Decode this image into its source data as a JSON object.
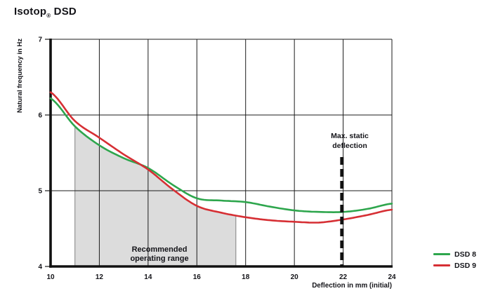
{
  "title": {
    "name": "Isotop",
    "reg": "®",
    "suffix": " DSD"
  },
  "colors": {
    "dsd8_green": "#2ea64d",
    "dsd9_red": "#d62f34",
    "region_fill": "#dcdcdc",
    "region_edge": "#808080",
    "grid": "#1b1b1b",
    "axis": "#111111",
    "text": "#141419"
  },
  "chart_data": {
    "type": "line",
    "title": "Isotop® DSD",
    "xlabel": "Deflection in mm (initial)",
    "ylabel": "Natural frequency in Hz",
    "xlim": [
      10,
      24
    ],
    "ylim": [
      4,
      7
    ],
    "x_ticks": [
      10,
      12,
      14,
      16,
      18,
      20,
      22,
      24
    ],
    "y_ticks": [
      4,
      5,
      6,
      7
    ],
    "grid": true,
    "legend_position": "bottom-right",
    "x": [
      10,
      11,
      12,
      13,
      14,
      15,
      16,
      17,
      18,
      19,
      20,
      21,
      22,
      23,
      24
    ],
    "series": [
      {
        "name": "DSD 8",
        "color": "#2ea64d",
        "values": [
          6.22,
          5.85,
          5.6,
          5.43,
          5.3,
          5.08,
          4.9,
          4.87,
          4.85,
          4.79,
          4.74,
          4.72,
          4.72,
          4.76,
          4.83
        ]
      },
      {
        "name": "DSD 9",
        "color": "#d62f34",
        "values": [
          6.3,
          5.92,
          5.7,
          5.48,
          5.28,
          5.02,
          4.8,
          4.71,
          4.65,
          4.61,
          4.59,
          4.58,
          4.62,
          4.68,
          4.75
        ]
      }
    ],
    "shaded_region": {
      "label": "Recommended operating range",
      "x_start": 11.0,
      "x_end": 17.6,
      "fill": "#dcdcdc"
    },
    "annotation": {
      "label": "Max. static deflection",
      "x": 21.95,
      "style": "thick-dashed-vertical",
      "color": "#111111"
    }
  },
  "legend": {
    "items": [
      {
        "label": "DSD 8",
        "color": "#2ea64d"
      },
      {
        "label": "DSD 9",
        "color": "#d62f34"
      }
    ]
  }
}
